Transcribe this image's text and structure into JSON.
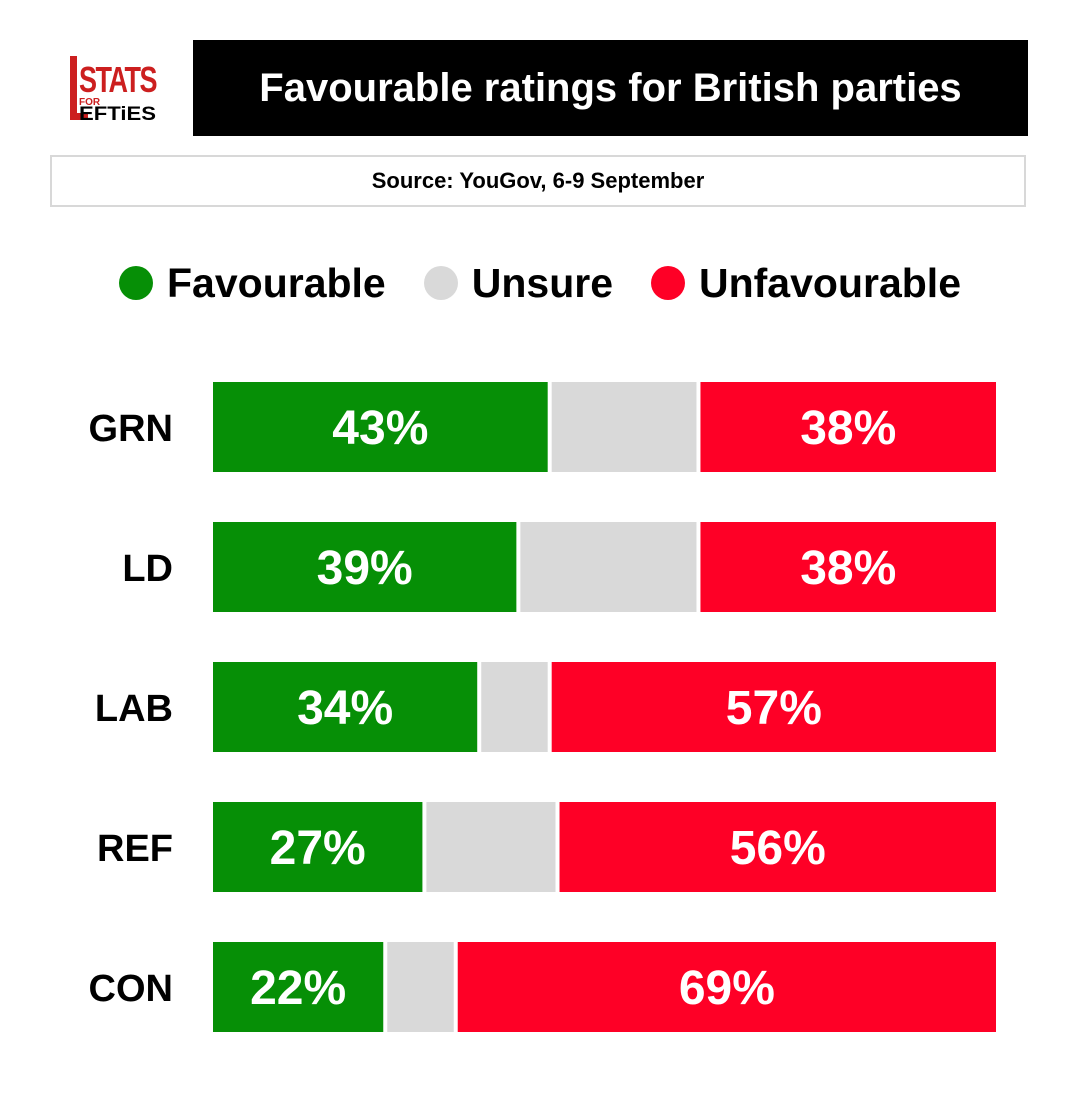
{
  "title": "Favourable ratings for British parties",
  "source": "Source: YouGov, 6-9 September",
  "logo": {
    "text_top": "STATS",
    "text_small": "FOR",
    "text_bottom": "EFTiES"
  },
  "colors": {
    "favourable": "#068f06",
    "unsure": "#d9d9d9",
    "unfavourable": "#fe0026",
    "title_bg": "#000000",
    "logo_red": "#cc1f1f"
  },
  "chart_data": {
    "type": "bar",
    "orientation": "horizontal",
    "stacked": true,
    "percent_stacked": true,
    "categories": [
      "GRN",
      "LD",
      "LAB",
      "REF",
      "CON"
    ],
    "series": [
      {
        "name": "Favourable",
        "values": [
          43,
          39,
          34,
          27,
          22
        ],
        "labels": [
          "43%",
          "39%",
          "34%",
          "27%",
          "22%"
        ]
      },
      {
        "name": "Unsure",
        "values": [
          19,
          23,
          9,
          17,
          9
        ],
        "labels": []
      },
      {
        "name": "Unfavourable",
        "values": [
          38,
          38,
          57,
          56,
          69
        ],
        "labels": [
          "38%",
          "38%",
          "57%",
          "56%",
          "69%"
        ]
      }
    ],
    "legend_position": "top",
    "grid": false
  }
}
